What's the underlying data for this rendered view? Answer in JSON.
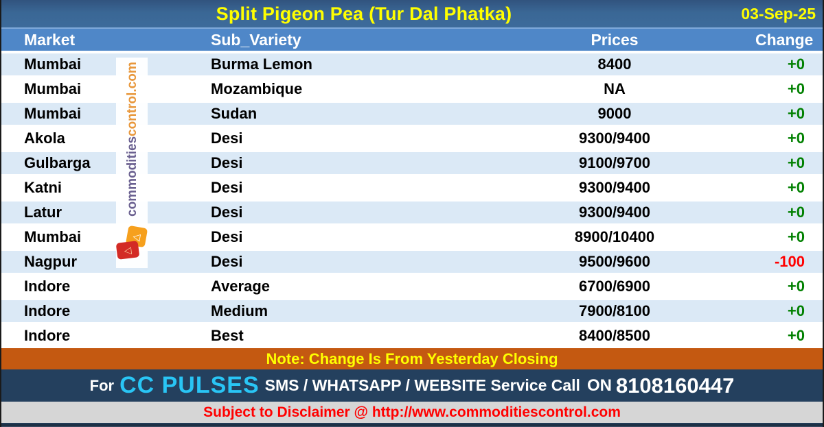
{
  "title_bar": {
    "title": "Split Pigeon Pea (Tur Dal Phatka)",
    "date": "03-Sep-25"
  },
  "chart_data": {
    "type": "table",
    "title": "Split Pigeon Pea (Tur Dal Phatka)",
    "date": "03-Sep-25",
    "columns": [
      "Market",
      "Sub_Variety",
      "Prices",
      "Change"
    ],
    "rows": [
      {
        "market": "Mumbai",
        "sub_variety": "Burma Lemon",
        "prices": "8400",
        "change": "+0"
      },
      {
        "market": "Mumbai",
        "sub_variety": "Mozambique",
        "prices": "NA",
        "change": "+0"
      },
      {
        "market": "Mumbai",
        "sub_variety": "Sudan",
        "prices": "9000",
        "change": "+0"
      },
      {
        "market": "Akola",
        "sub_variety": "Desi",
        "prices": "9300/9400",
        "change": "+0"
      },
      {
        "market": "Gulbarga",
        "sub_variety": "Desi",
        "prices": "9100/9700",
        "change": "+0"
      },
      {
        "market": "Katni",
        "sub_variety": "Desi",
        "prices": "9300/9400",
        "change": "+0"
      },
      {
        "market": "Latur",
        "sub_variety": "Desi",
        "prices": "9300/9400",
        "change": "+0"
      },
      {
        "market": "Mumbai",
        "sub_variety": "Desi",
        "prices": "8900/10400",
        "change": "+0"
      },
      {
        "market": "Nagpur",
        "sub_variety": "Desi",
        "prices": "9500/9600",
        "change": "-100"
      },
      {
        "market": "Indore",
        "sub_variety": "Average",
        "prices": "6700/6900",
        "change": "+0"
      },
      {
        "market": "Indore",
        "sub_variety": "Medium",
        "prices": "7900/8100",
        "change": "+0"
      },
      {
        "market": "Indore",
        "sub_variety": "Best",
        "prices": "8400/8500",
        "change": "+0"
      }
    ]
  },
  "note_bar": {
    "text": "Note: Change Is From Yesterday Closing"
  },
  "service_bar": {
    "prefix": "For",
    "brand": "CC PULSES",
    "middle": "SMS / WHATSAPP / WEBSITE Service Call",
    "on_label": "ON",
    "phone": "8108160447"
  },
  "disclaimer_bar": {
    "text": "Subject to Disclaimer @  http://www.commoditiescontrol.com"
  },
  "watermark": {
    "text_primary": "commodities",
    "text_secondary": "control.com",
    "logo_name": "commoditiescontrol-logo",
    "glyph": "◁"
  },
  "colors": {
    "title_bar_bg": "#3a6795",
    "header_bg": "#4f87c8",
    "row_alt_bg": "#dbe9f6",
    "note_bg": "#c45911",
    "service_bg": "#24405e",
    "brand_cyan": "#29c5f5",
    "disclaimer_bg": "#d6d6d6",
    "positive": "#008000",
    "negative": "#ff0000",
    "accent_yellow": "#ffff00",
    "watermark_purple": "#6a6090",
    "watermark_orange": "#e8973b"
  }
}
